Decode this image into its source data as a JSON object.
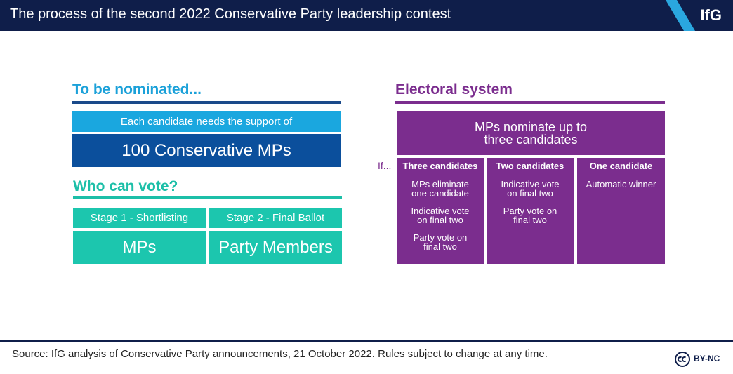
{
  "header": {
    "title": "The process of the second 2022 Conservative Party leadership contest",
    "logo": "IfG"
  },
  "nomination": {
    "heading": "To be nominated...",
    "support_text": "Each candidate needs the support of",
    "requirement": "100 Conservative MPs"
  },
  "voting": {
    "heading": "Who can vote?",
    "stages": [
      {
        "label": "Stage 1 - Shortlisting",
        "voters": "MPs"
      },
      {
        "label": "Stage 2 - Final Ballot",
        "voters": "Party Members"
      }
    ]
  },
  "electoral_system": {
    "heading": "Electoral system",
    "first_step": "MPs nominate up to three candidates",
    "condition": "If...",
    "scenarios": [
      {
        "name": "Three candidates",
        "steps": [
          "MPs eliminate one candidate",
          "Indicative vote on final two",
          "Party vote on final two"
        ]
      },
      {
        "name": "Two candidates",
        "steps": [
          "Indicative vote on final two",
          "Party vote on final two"
        ]
      },
      {
        "name": "One candidate",
        "steps": [
          "Automatic winner"
        ]
      }
    ]
  },
  "footer": {
    "source": "Source: IfG analysis of Conservative Party announcements, 21 October 2022. Rules subject to change at any time.",
    "license": "BY-NC"
  }
}
